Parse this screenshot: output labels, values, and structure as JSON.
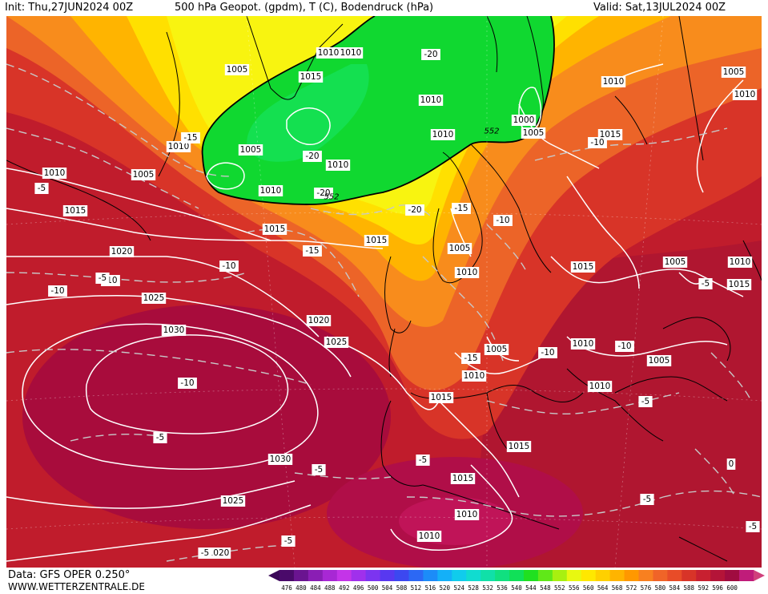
{
  "header": {
    "init": "Init: Thu,27JUN2024 00Z",
    "title": "500 hPa Geopot. (gpdm), T (C), Bodendruck (hPa)",
    "valid": "Valid: Sat,13JUL2024 00Z"
  },
  "footer": {
    "data_source": "Data: GFS OPER 0.250°",
    "website": "WWW.WETTERZENTRALE.DE"
  },
  "colorbar": {
    "ticks": [
      "476",
      "480",
      "484",
      "488",
      "492",
      "496",
      "500",
      "504",
      "508",
      "512",
      "516",
      "520",
      "524",
      "528",
      "532",
      "536",
      "540",
      "544",
      "548",
      "552",
      "556",
      "560",
      "564",
      "568",
      "572",
      "576",
      "580",
      "584",
      "588",
      "592",
      "596",
      "600"
    ],
    "colors": [
      "#4a0a6a",
      "#6a1490",
      "#8a1eb4",
      "#a828d4",
      "#c434e8",
      "#a030ec",
      "#7c34f0",
      "#5838f0",
      "#3c48f0",
      "#2c68f4",
      "#1c8cf8",
      "#14b0f8",
      "#10ccec",
      "#10dcd0",
      "#10e0a8",
      "#10e080",
      "#10e058",
      "#20e020",
      "#60e818",
      "#a8f010",
      "#e8f810",
      "#ffe800",
      "#ffd000",
      "#ffb400",
      "#ff9800",
      "#f88020",
      "#f06428",
      "#e84c28",
      "#d83428",
      "#c82030",
      "#b41438",
      "#a00c40",
      "#c01c7a"
    ],
    "low_arrow_color": "#3a0858",
    "high_arrow_color": "#d0407c"
  },
  "pressure_labels": [
    {
      "text": "1010"
    },
    {
      "text": "1015"
    },
    {
      "text": "1010"
    },
    {
      "text": "1005"
    },
    {
      "text": "1005"
    },
    {
      "text": "1010"
    },
    {
      "text": "1010"
    },
    {
      "text": "1005"
    },
    {
      "text": "1010"
    },
    {
      "text": "1010"
    },
    {
      "text": "1015"
    },
    {
      "text": "1020"
    },
    {
      "text": "1025"
    },
    {
      "text": "1030"
    },
    {
      "text": "1015"
    },
    {
      "text": "1020"
    },
    {
      "text": "1025"
    },
    {
      "text": "1015"
    },
    {
      "text": "1010"
    },
    {
      "text": "1010"
    },
    {
      "text": "1000"
    },
    {
      "text": "1005"
    },
    {
      "text": "1010"
    },
    {
      "text": "1005"
    },
    {
      "text": "1010"
    },
    {
      "text": "1005"
    },
    {
      "text": "1015"
    },
    {
      "text": "1010"
    },
    {
      "text": "1005"
    },
    {
      "text": "1010"
    },
    {
      "text": "1005"
    },
    {
      "text": "1015"
    },
    {
      "text": "1010"
    },
    {
      "text": "1015"
    },
    {
      "text": "1010"
    },
    {
      "text": "1010"
    },
    {
      "text": "1015"
    },
    {
      "text": "1025"
    },
    {
      "text": "1030"
    },
    {
      "text": "1020"
    },
    {
      "text": "1010"
    },
    {
      "text": "1015"
    },
    {
      "text": "1015"
    },
    {
      "text": "1010"
    },
    {
      "text": "1005"
    }
  ],
  "temp_labels": [
    {
      "text": "-15"
    },
    {
      "text": "-5"
    },
    {
      "text": "-10"
    },
    {
      "text": "-10"
    },
    {
      "text": "-10"
    },
    {
      "text": "-15"
    },
    {
      "text": "-10"
    },
    {
      "text": "-5"
    },
    {
      "text": "-20"
    },
    {
      "text": "-20"
    },
    {
      "text": "-20"
    },
    {
      "text": "-20"
    },
    {
      "text": "-15"
    },
    {
      "text": "-10"
    },
    {
      "text": "-10"
    },
    {
      "text": "-15"
    },
    {
      "text": "-10"
    },
    {
      "text": "-5"
    },
    {
      "text": "-10"
    },
    {
      "text": "-5"
    },
    {
      "text": "-5"
    },
    {
      "text": "-5"
    },
    {
      "text": "-5"
    },
    {
      "text": "-5"
    },
    {
      "text": "-5"
    },
    {
      "text": "0"
    },
    {
      "text": "-5"
    },
    {
      "text": "-5"
    }
  ],
  "geopot_labels": [
    {
      "text": "552"
    },
    {
      "text": "552"
    }
  ],
  "legend_band_colors": {
    "green": "#10d830",
    "yellow": "#f8f000",
    "orange": "#f09018",
    "red": "#c81c20",
    "magenta": "#c0104c"
  }
}
